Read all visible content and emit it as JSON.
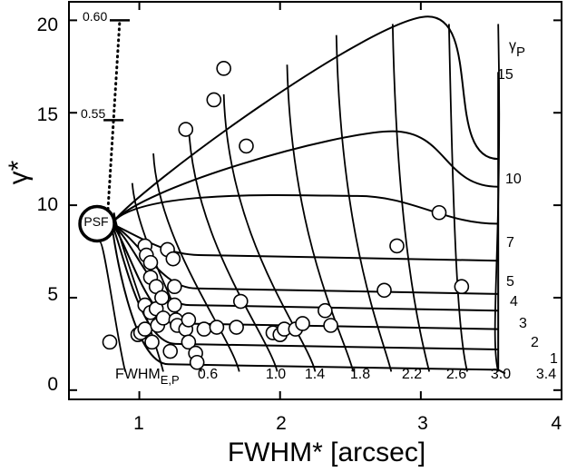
{
  "chart_data": {
    "type": "scatter",
    "title": "",
    "xlabel": "FWHM* [arcsec]",
    "ylabel": "γ*",
    "xlim": [
      0.5,
      4.0
    ],
    "ylim": [
      -0.5,
      21
    ],
    "x_ticks": [
      "1",
      "2",
      "3",
      "4"
    ],
    "y_ticks": [
      "0",
      "5",
      "10",
      "15",
      "20"
    ],
    "psf_label": "PSF",
    "psf_point": {
      "x": 0.7,
      "y": 9.0
    },
    "gamma_p_label": "γ",
    "gamma_p_sub": "P",
    "gamma_p_values": [
      "1",
      "2",
      "3",
      "4",
      "5",
      "7",
      "10",
      "15"
    ],
    "fwhm_ep_label": "FWHM",
    "fwhm_ep_sub": "E,P",
    "fwhm_ep_values": [
      "0.6",
      "1.0",
      "1.4",
      "1.8",
      "2.2",
      "2.6",
      "3.0",
      "3.4"
    ],
    "upper_marker_labels": [
      "0.60",
      "0.55"
    ],
    "upper_markers": [
      {
        "label": "0.60",
        "y": 20.0
      },
      {
        "label": "0.55",
        "y": 14.6
      }
    ],
    "points": [
      {
        "x": 0.79,
        "y": 2.6
      },
      {
        "x": 0.99,
        "y": 3.0
      },
      {
        "x": 1.01,
        "y": 3.1
      },
      {
        "x": 1.04,
        "y": 7.8
      },
      {
        "x": 1.05,
        "y": 7.3
      },
      {
        "x": 1.08,
        "y": 6.9
      },
      {
        "x": 1.08,
        "y": 6.1
      },
      {
        "x": 1.04,
        "y": 4.6
      },
      {
        "x": 1.04,
        "y": 3.3
      },
      {
        "x": 1.08,
        "y": 4.2
      },
      {
        "x": 1.09,
        "y": 2.6
      },
      {
        "x": 1.12,
        "y": 5.6
      },
      {
        "x": 1.12,
        "y": 4.4
      },
      {
        "x": 1.13,
        "y": 3.5
      },
      {
        "x": 1.16,
        "y": 5.0
      },
      {
        "x": 1.17,
        "y": 3.9
      },
      {
        "x": 1.2,
        "y": 7.6
      },
      {
        "x": 1.22,
        "y": 2.1
      },
      {
        "x": 1.24,
        "y": 7.1
      },
      {
        "x": 1.25,
        "y": 5.6
      },
      {
        "x": 1.25,
        "y": 4.6
      },
      {
        "x": 1.26,
        "y": 3.8
      },
      {
        "x": 1.27,
        "y": 3.5
      },
      {
        "x": 1.33,
        "y": 3.3
      },
      {
        "x": 1.35,
        "y": 2.6
      },
      {
        "x": 1.35,
        "y": 3.8
      },
      {
        "x": 1.33,
        "y": 14.1
      },
      {
        "x": 1.4,
        "y": 2.0
      },
      {
        "x": 1.41,
        "y": 1.5
      },
      {
        "x": 1.46,
        "y": 3.3
      },
      {
        "x": 1.53,
        "y": 15.7
      },
      {
        "x": 1.55,
        "y": 3.4
      },
      {
        "x": 1.6,
        "y": 17.4
      },
      {
        "x": 1.69,
        "y": 3.4
      },
      {
        "x": 1.72,
        "y": 4.8
      },
      {
        "x": 1.76,
        "y": 13.2
      },
      {
        "x": 1.95,
        "y": 3.1
      },
      {
        "x": 2.0,
        "y": 3.0
      },
      {
        "x": 2.03,
        "y": 3.3
      },
      {
        "x": 2.11,
        "y": 3.3
      },
      {
        "x": 2.16,
        "y": 3.6
      },
      {
        "x": 2.32,
        "y": 4.3
      },
      {
        "x": 2.36,
        "y": 3.5
      },
      {
        "x": 2.74,
        "y": 5.4
      },
      {
        "x": 2.83,
        "y": 7.8
      },
      {
        "x": 3.13,
        "y": 9.6
      },
      {
        "x": 3.29,
        "y": 5.6
      }
    ]
  }
}
